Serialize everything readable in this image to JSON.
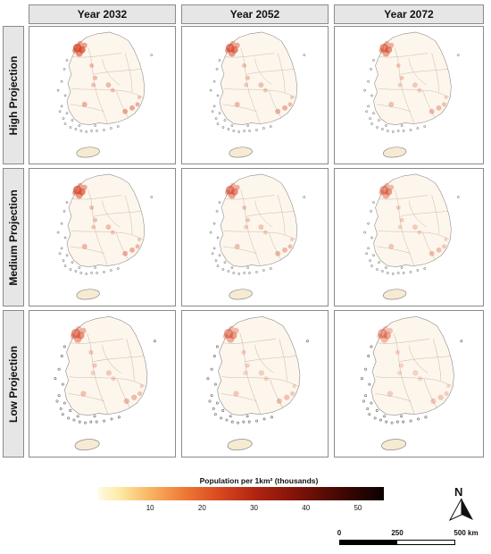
{
  "columns": [
    "Year 2032",
    "Year 2052",
    "Year 2072"
  ],
  "rows": [
    "High Projection",
    "Medium Projection",
    "Low Projection"
  ],
  "legend": {
    "title": "Population per 1km² (thousands)",
    "ticks": [
      10,
      20,
      30,
      40,
      50
    ],
    "range": [
      0,
      55
    ],
    "colors": [
      "#fffbe5",
      "#fde8a0",
      "#f9b464",
      "#ee7a35",
      "#d94a21",
      "#b02412",
      "#7e1209",
      "#3e0703",
      "#0b0101"
    ]
  },
  "north_arrow": {
    "label": "N"
  },
  "scale_bar": {
    "labels": [
      "0",
      "250",
      "500 km"
    ]
  },
  "map": {
    "land_color": "#fdf6ec",
    "boundary_color": "#c9b9a9",
    "hotspot_color": "#d6472a"
  }
}
